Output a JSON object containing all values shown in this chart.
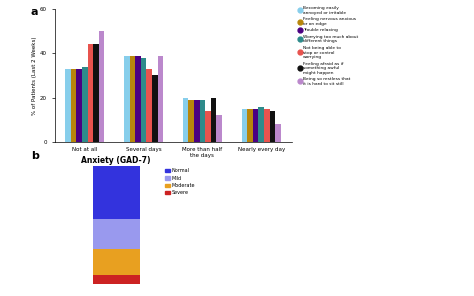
{
  "title_a": "a",
  "title_b": "b",
  "bar_categories": [
    "Not at all",
    "Several days",
    "More than half\nthe days",
    "Nearly every day"
  ],
  "series_labels": [
    "Becoming easily\nannoyed or irritable",
    "Feeling nervous anxious\nor on edge",
    "Trouble relaxing",
    "Worrying too much about\ndifferent things",
    "Not being able to\nstop or control\nworrying",
    "Feeling afraid as if\nsomething awful\nmight happen",
    "Being so restless that\nit is hard to sit still"
  ],
  "series_colors": [
    "#87ceeb",
    "#b8860b",
    "#4b0082",
    "#2e8b8b",
    "#e8534e",
    "#111111",
    "#bb88cc"
  ],
  "bar_data": [
    [
      33,
      39,
      20,
      15
    ],
    [
      33,
      39,
      19,
      15
    ],
    [
      33,
      39,
      19,
      15
    ],
    [
      34,
      38,
      19,
      16
    ],
    [
      44,
      33,
      14,
      15
    ],
    [
      44,
      30,
      20,
      14
    ],
    [
      50,
      39,
      12,
      8
    ]
  ],
  "ylabel": "% of Patients (Last 2 Weeks)",
  "ylim": [
    0,
    60
  ],
  "yticks": [
    0,
    20,
    40,
    60
  ],
  "stacked_title": "Anxiety (GAD-7)",
  "stacked_labels": [
    "Normal",
    "Mild",
    "Moderate",
    "Severe"
  ],
  "stacked_colors": [
    "#3333dd",
    "#9999ee",
    "#e8a020",
    "#cc2222"
  ],
  "stacked_values": [
    45,
    25,
    22,
    8
  ],
  "background_color": "#ffffff"
}
